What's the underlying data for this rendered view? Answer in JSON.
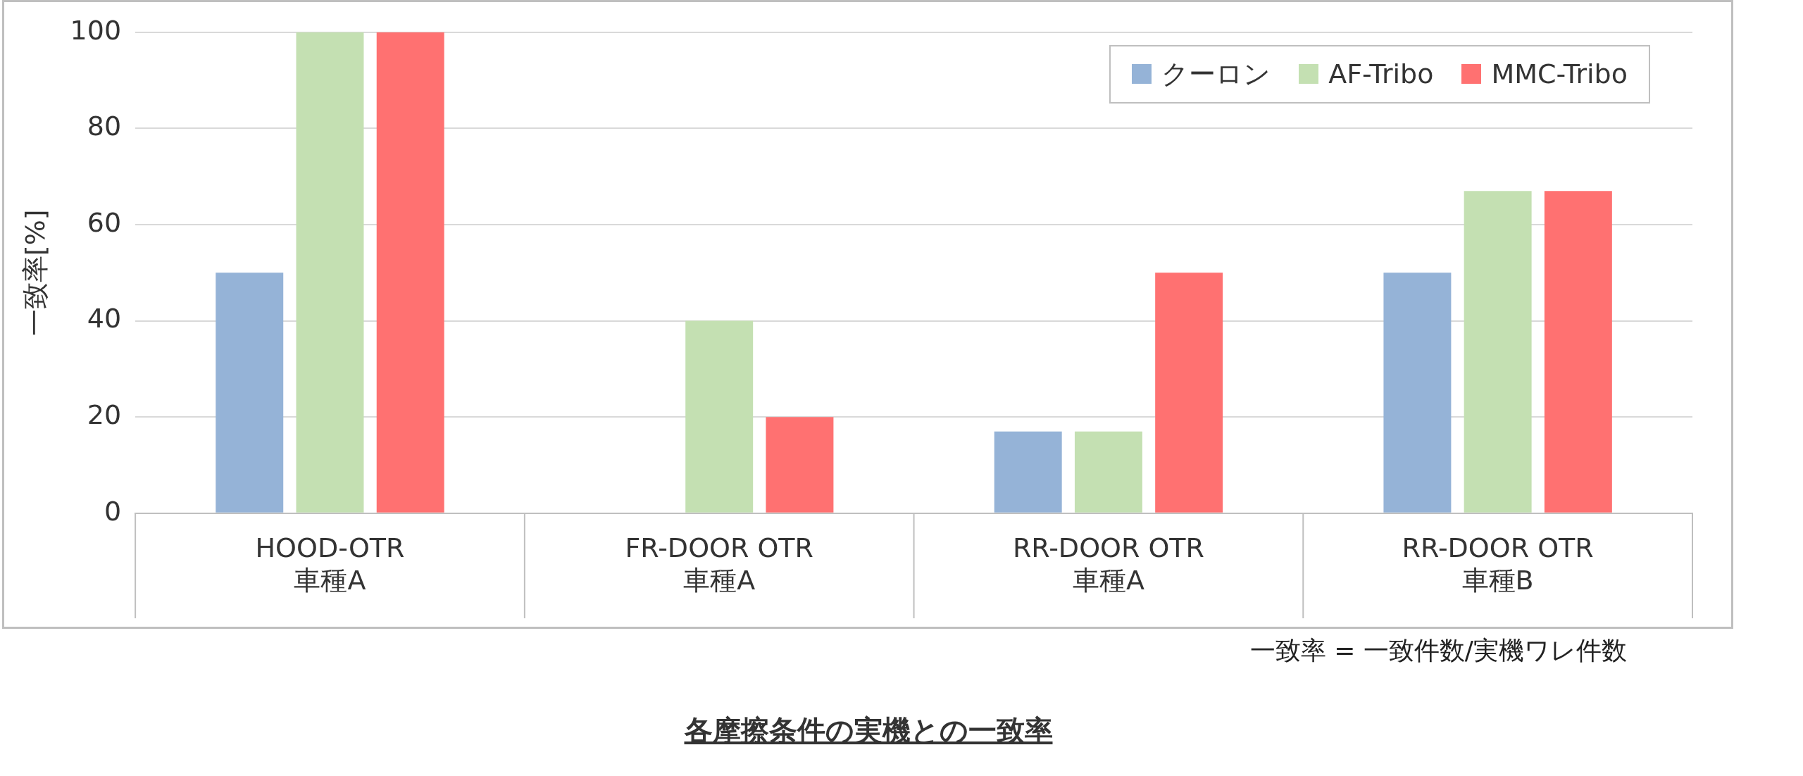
{
  "chart_data": {
    "type": "bar",
    "title": "各摩擦条件の実機との一致率",
    "ylabel": "一致率[%]",
    "categories": [
      "HOOD-OTR\n車種A",
      "FR-DOOR OTR\n車種A",
      "RR-DOOR OTR\n車種A",
      "RR-DOOR OTR\n車種B"
    ],
    "series": [
      {
        "name": "クーロン",
        "color": "#95b3d7",
        "values": [
          50,
          0,
          17,
          50
        ]
      },
      {
        "name": "AF-Tribo",
        "color": "#c4e0b2",
        "values": [
          100,
          40,
          17,
          67
        ]
      },
      {
        "name": "MMC-Tribo",
        "color": "#ff7171",
        "values": [
          100,
          20,
          50,
          67
        ]
      }
    ],
    "ylim": [
      0,
      100
    ],
    "yticks": [
      0,
      20,
      40,
      60,
      80,
      100
    ],
    "grid": "y",
    "legend": "top right",
    "annotations": [
      "一致率 = 一致件数/実機ワレ件数"
    ]
  }
}
